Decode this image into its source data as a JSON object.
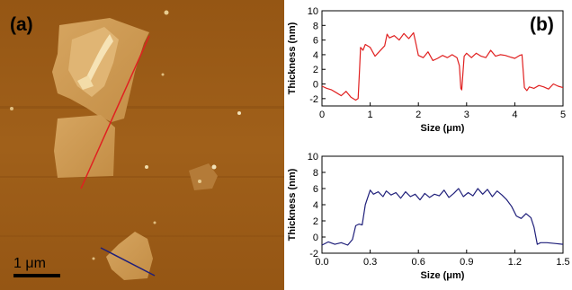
{
  "afm_image": {
    "panel_label": "(a)",
    "scale_bar_label": "1 μm",
    "line_colors": {
      "red_profile": "#e02020",
      "blue_profile": "#1f1f7a"
    },
    "background_color": "#9a5a18"
  },
  "chart_data": [
    {
      "type": "line",
      "panel_label": "(b)",
      "xlabel": "Size (μm)",
      "ylabel": "Thickness (nm)",
      "xlim": [
        0,
        5
      ],
      "ylim": [
        -3,
        10
      ],
      "xticks": [
        0,
        1,
        2,
        3,
        4,
        5
      ],
      "yticks": [
        -2,
        0,
        2,
        4,
        6,
        8,
        10
      ],
      "grid": false,
      "color": "#e02020",
      "x": [
        0.0,
        0.1,
        0.2,
        0.3,
        0.4,
        0.5,
        0.6,
        0.7,
        0.75,
        0.78,
        0.8,
        0.85,
        0.9,
        1.0,
        1.1,
        1.2,
        1.3,
        1.35,
        1.4,
        1.5,
        1.6,
        1.7,
        1.8,
        1.9,
        1.95,
        2.0,
        2.1,
        2.2,
        2.3,
        2.4,
        2.5,
        2.6,
        2.7,
        2.8,
        2.85,
        2.88,
        2.9,
        2.95,
        3.0,
        3.1,
        3.2,
        3.3,
        3.4,
        3.5,
        3.6,
        3.7,
        3.8,
        3.9,
        4.0,
        4.1,
        4.15,
        4.2,
        4.25,
        4.3,
        4.4,
        4.5,
        4.6,
        4.7,
        4.8,
        4.9,
        5.0
      ],
      "y": [
        -0.3,
        -0.6,
        -0.8,
        -1.2,
        -1.6,
        -1.0,
        -1.8,
        -2.2,
        -2.0,
        2.0,
        5.0,
        4.6,
        5.4,
        5.0,
        3.8,
        4.5,
        5.2,
        6.8,
        6.3,
        6.6,
        6.0,
        6.9,
        6.2,
        7.0,
        5.5,
        3.9,
        3.6,
        4.4,
        3.2,
        3.5,
        3.9,
        3.6,
        4.0,
        3.6,
        2.5,
        -0.6,
        -0.8,
        3.8,
        4.2,
        3.6,
        4.2,
        3.8,
        3.6,
        4.6,
        3.8,
        4.0,
        3.9,
        3.7,
        3.5,
        3.9,
        4.0,
        -0.5,
        -0.9,
        -0.4,
        -0.6,
        -0.2,
        -0.4,
        -0.7,
        0.0,
        -0.3,
        -0.5
      ]
    },
    {
      "type": "line",
      "xlabel": "Size (μm)",
      "ylabel": "Thickness (nm)",
      "xlim": [
        0,
        1.5
      ],
      "ylim": [
        -2,
        10
      ],
      "xticks": [
        0.0,
        0.3,
        0.6,
        0.9,
        1.2,
        1.5
      ],
      "yticks": [
        -2,
        0,
        2,
        4,
        6,
        8,
        10
      ],
      "grid": false,
      "color": "#1f1f7a",
      "x": [
        0.0,
        0.04,
        0.08,
        0.12,
        0.16,
        0.19,
        0.21,
        0.23,
        0.25,
        0.27,
        0.3,
        0.32,
        0.35,
        0.38,
        0.4,
        0.43,
        0.46,
        0.49,
        0.52,
        0.55,
        0.58,
        0.61,
        0.64,
        0.67,
        0.7,
        0.73,
        0.76,
        0.79,
        0.82,
        0.85,
        0.88,
        0.91,
        0.94,
        0.97,
        1.0,
        1.03,
        1.06,
        1.09,
        1.12,
        1.15,
        1.18,
        1.21,
        1.24,
        1.27,
        1.3,
        1.32,
        1.34,
        1.36,
        1.4,
        1.45,
        1.5
      ],
      "y": [
        -1.0,
        -0.6,
        -0.9,
        -0.7,
        -1.0,
        -0.3,
        1.4,
        1.6,
        1.5,
        4.0,
        5.8,
        5.3,
        5.6,
        5.0,
        5.7,
        5.2,
        5.5,
        4.8,
        5.6,
        5.0,
        5.3,
        4.6,
        5.4,
        4.9,
        5.3,
        5.1,
        5.8,
        4.9,
        5.4,
        6.0,
        5.0,
        5.5,
        5.1,
        6.0,
        5.3,
        5.9,
        5.0,
        5.7,
        5.2,
        4.6,
        3.8,
        2.6,
        2.3,
        2.9,
        2.4,
        1.2,
        -0.9,
        -0.7,
        -0.7,
        -0.8,
        -0.9
      ]
    }
  ]
}
